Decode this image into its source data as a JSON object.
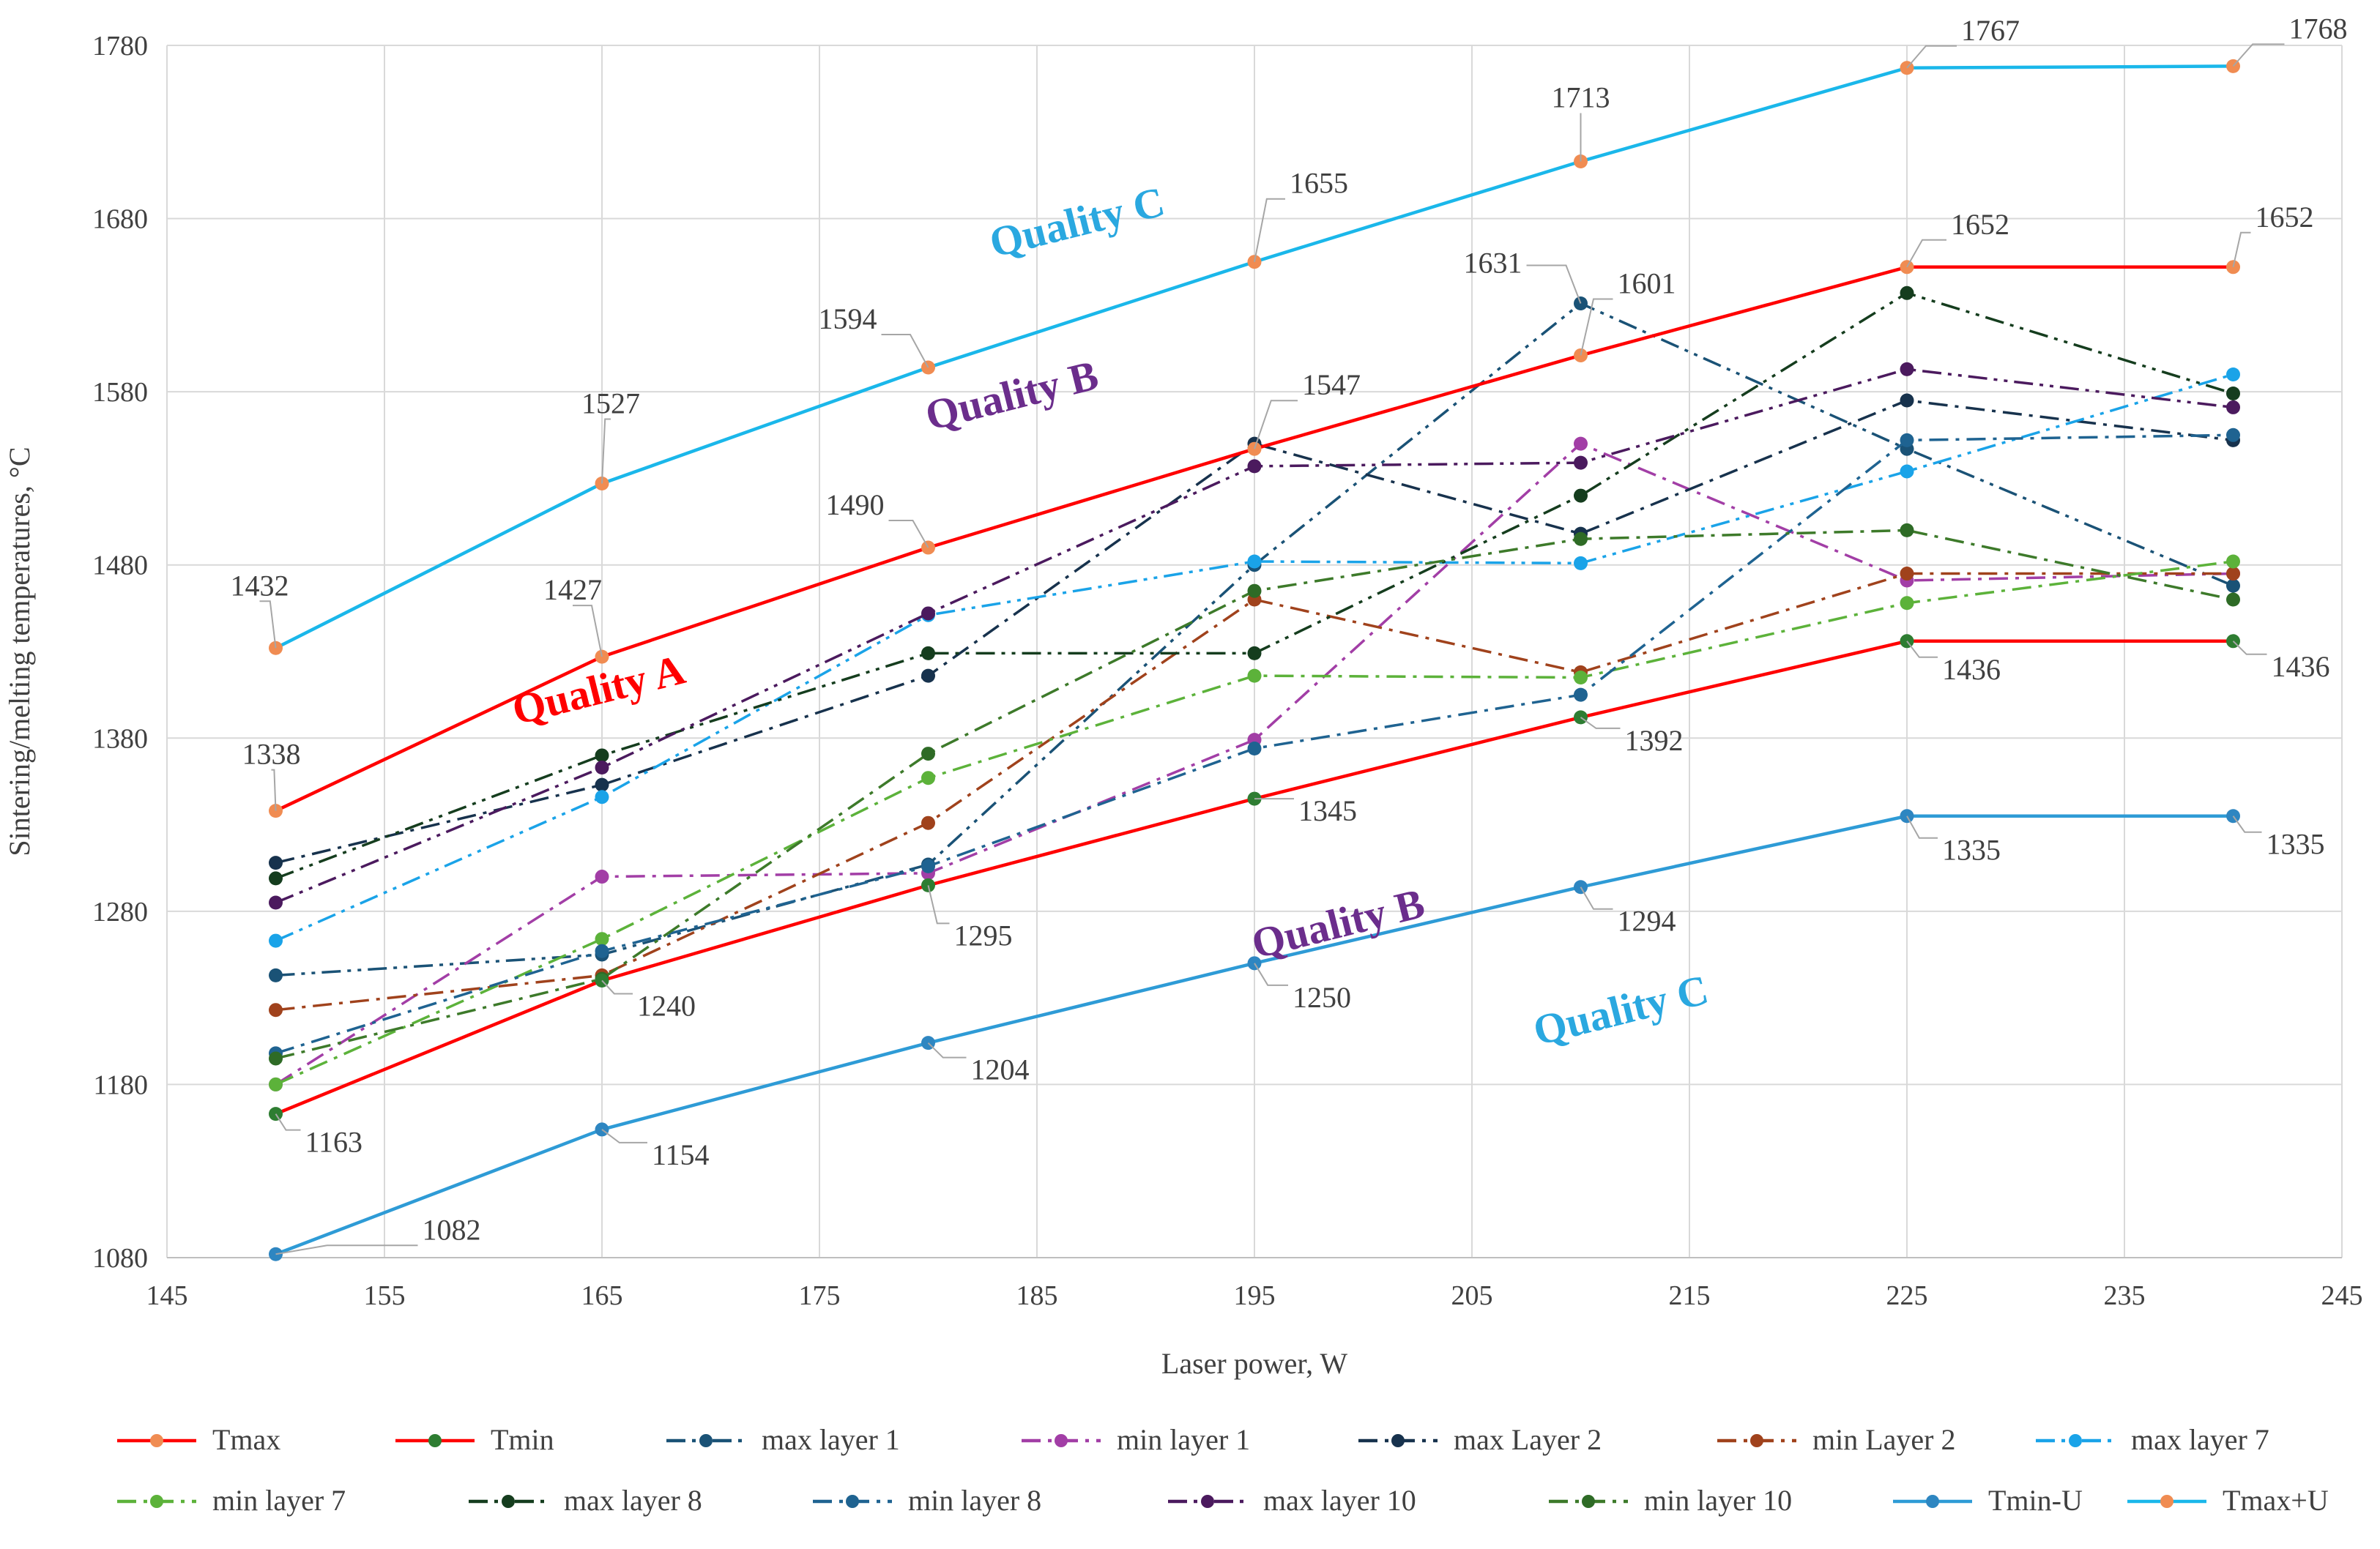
{
  "chart_data": {
    "type": "line",
    "title": "",
    "xlabel": "Laser power, W",
    "ylabel": "Sintering/melting temperatures, °C",
    "xlim": [
      145,
      245
    ],
    "ylim": [
      1080,
      1780
    ],
    "xticks": [
      145,
      155,
      165,
      175,
      185,
      195,
      205,
      215,
      225,
      235,
      245
    ],
    "yticks": [
      1080,
      1180,
      1280,
      1380,
      1480,
      1580,
      1680,
      1780
    ],
    "x": [
      150,
      165,
      180,
      195,
      210,
      225,
      240
    ],
    "grid": true,
    "legend": "bottom",
    "series": [
      {
        "name": "Tmax",
        "values": [
          1338,
          1427,
          1490,
          1547,
          1601,
          1652,
          1652
        ],
        "color": "#ff0000",
        "marker": "#f08c52",
        "dash": "solid"
      },
      {
        "name": "Tmin",
        "values": [
          1163,
          1240,
          1295,
          1345,
          1392,
          1436,
          1436
        ],
        "color": "#ff0000",
        "marker": "#2e7d32",
        "dash": "solid"
      },
      {
        "name": "max layer 1",
        "values": [
          1243,
          1255,
          1307,
          1480,
          1631,
          1547,
          1468
        ],
        "color": "#1a5276",
        "marker": "#1a5276",
        "dash": "dashdotdot"
      },
      {
        "name": "min layer 1",
        "values": [
          1180,
          1300,
          1302,
          1379,
          1550,
          1471,
          1475
        ],
        "color": "#a23ea6",
        "marker": "#a23ea6",
        "dash": "dashdot"
      },
      {
        "name": "max Layer 2",
        "values": [
          1308,
          1353,
          1416,
          1550,
          1498,
          1575,
          1552
        ],
        "color": "#17324d",
        "marker": "#17324d",
        "dash": "dashdot"
      },
      {
        "name": "min Layer 2",
        "values": [
          1223,
          1243,
          1331,
          1460,
          1418,
          1475,
          1475
        ],
        "color": "#a0421c",
        "marker": "#a0421c",
        "dash": "dashdot"
      },
      {
        "name": "max layer 7",
        "values": [
          1263,
          1346,
          1451,
          1482,
          1481,
          1534,
          1590
        ],
        "color": "#1aa3e8",
        "marker": "#1aa3e8",
        "dash": "dashdotdot"
      },
      {
        "name": "min layer 7",
        "values": [
          1180,
          1264,
          1357,
          1416,
          1415,
          1458,
          1482
        ],
        "color": "#5cb23a",
        "marker": "#5cb23a",
        "dash": "dashdot"
      },
      {
        "name": "max layer 8",
        "values": [
          1299,
          1370,
          1429,
          1429,
          1520,
          1637,
          1579
        ],
        "color": "#153d1e",
        "marker": "#153d1e",
        "dash": "dashdotdot"
      },
      {
        "name": "min layer 8",
        "values": [
          1198,
          1257,
          1306,
          1374,
          1405,
          1552,
          1555
        ],
        "color": "#1f6391",
        "marker": "#1f6391",
        "dash": "dashdot"
      },
      {
        "name": "max layer 10",
        "values": [
          1285,
          1363,
          1452,
          1537,
          1539,
          1593,
          1571
        ],
        "color": "#4b1a5e",
        "marker": "#4b1a5e",
        "dash": "dashdotdot"
      },
      {
        "name": "min layer 10",
        "values": [
          1195,
          1241,
          1371,
          1465,
          1495,
          1500,
          1460
        ],
        "color": "#3d7a2a",
        "marker": "#2e6b26",
        "dash": "dashdot"
      },
      {
        "name": "Tmin-U",
        "values": [
          1082,
          1154,
          1204,
          1250,
          1294,
          1335,
          1335
        ],
        "color": "#2e9bd6",
        "marker": "#2e86c1",
        "dash": "solid"
      },
      {
        "name": "Tmax+U",
        "values": [
          1432,
          1527,
          1594,
          1655,
          1713,
          1767,
          1768
        ],
        "color": "#1ab7ea",
        "marker": "#f08c52",
        "dash": "solid"
      }
    ],
    "data_labels": [
      {
        "series": "Tmax",
        "values": [
          "1338",
          "1427",
          "1490",
          "1547",
          "1601",
          "1652",
          "1652"
        ]
      },
      {
        "series": "Tmin",
        "values": [
          "1163",
          "1240",
          "1295",
          "1345",
          "1392",
          "1436",
          "1436"
        ]
      },
      {
        "series": "Tmin-U",
        "values": [
          "1082",
          "1154",
          "1204",
          "1250",
          "1294",
          "1335",
          "1335"
        ]
      },
      {
        "series": "Tmax+U",
        "values": [
          "1432",
          "1527",
          "1594",
          "1655",
          "1713",
          "1767",
          "1768"
        ]
      },
      {
        "series": "max layer 1",
        "point": 4,
        "text": "1631"
      }
    ],
    "annotations": [
      {
        "text": "Quality C",
        "color": "#2aa8e0",
        "x": 187,
        "y": 1670,
        "angle": -14
      },
      {
        "text": "Quality B",
        "color": "#6b2d8c",
        "x": 184,
        "y": 1570,
        "angle": -14
      },
      {
        "text": "Quality A",
        "color": "#ff0000",
        "x": 165,
        "y": 1400,
        "angle": -14
      },
      {
        "text": "Quality B",
        "color": "#6b2d8c",
        "x": 199,
        "y": 1265,
        "angle": -14
      },
      {
        "text": "Quality C",
        "color": "#2aa8e0",
        "x": 212,
        "y": 1215,
        "angle": -14
      }
    ]
  }
}
